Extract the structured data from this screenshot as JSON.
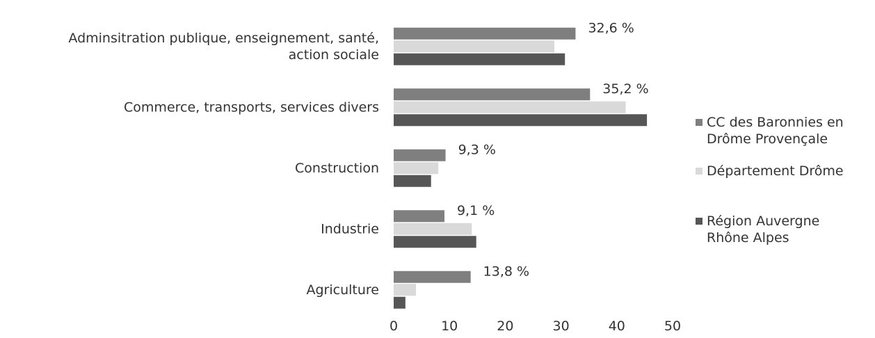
{
  "chart_data": {
    "type": "bar",
    "orientation": "horizontal",
    "categories": [
      "Adminsitration publique, enseignement, santé,\naction sociale",
      "Commerce, transports, services divers",
      "Construction",
      "Industrie",
      "Agriculture"
    ],
    "series": [
      {
        "name": "CC des Baronnies en\nDrôme Provençale",
        "color": "#7f7f7f",
        "values": [
          32.6,
          35.2,
          9.3,
          9.1,
          13.8
        ],
        "value_labels": [
          "32,6 %",
          "35,2 %",
          "9,3 %",
          "9,1 %",
          "13,8 %"
        ]
      },
      {
        "name": "Département Drôme",
        "color": "#d9d9d9",
        "values": [
          28.8,
          41.6,
          8.0,
          14.0,
          4.0
        ]
      },
      {
        "name": "Région Auvergne\nRhône Alpes",
        "color": "#565656",
        "values": [
          30.7,
          45.4,
          6.7,
          14.8,
          2.1
        ]
      }
    ],
    "xlim": [
      0,
      50
    ],
    "xticks": [
      0,
      10,
      20,
      30,
      40,
      50
    ],
    "grid": false,
    "legend": "right"
  }
}
